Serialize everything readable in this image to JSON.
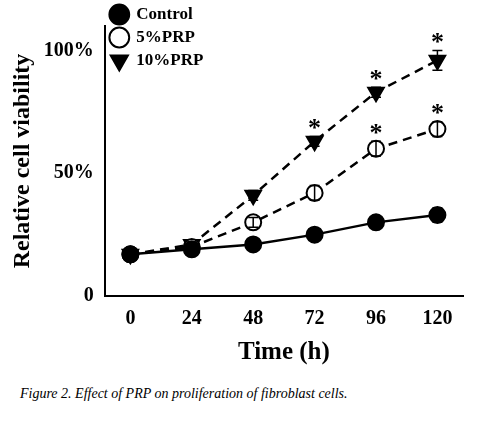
{
  "chart_data": {
    "type": "line",
    "caption": "Figure 2. Effect of PRP on proliferation of fibroblast cells.",
    "x_label": "Time (h)",
    "y_label": "Relative cell viability",
    "x": [
      0,
      24,
      48,
      72,
      96,
      120
    ],
    "series": [
      {
        "name": "Control",
        "color": "#000000",
        "marker": "circle",
        "line_style": "solid",
        "values": [
          17,
          19,
          21,
          25,
          30,
          33
        ],
        "errors": [
          1,
          1,
          1,
          1.5,
          2,
          3
        ]
      },
      {
        "name": "5%PRP",
        "color": "#000000",
        "marker": "open_circle",
        "line_style": "dashed",
        "values": [
          17,
          20,
          30,
          42,
          60,
          68
        ],
        "errors": [
          1,
          1,
          2,
          3,
          3,
          3
        ]
      },
      {
        "name": "10%PRP",
        "color": "#000000",
        "marker": "triangle_down",
        "line_style": "dashed",
        "values": [
          17,
          21,
          41,
          63,
          83,
          96
        ],
        "errors": [
          1,
          1,
          2,
          2,
          2,
          4
        ]
      }
    ],
    "xlim": [
      -10,
      130
    ],
    "xticks": [
      0,
      24,
      48,
      72,
      96,
      120
    ],
    "ylim": [
      0,
      110
    ],
    "yticks": [
      0,
      {
        "value": 50,
        "label": "50%"
      },
      {
        "value": 100,
        "label": "100%"
      }
    ],
    "grid": false,
    "legend": "upper left",
    "annotations": [
      {
        "text": "*",
        "x": 72,
        "series": "10%PRP"
      },
      {
        "text": "*",
        "x": 96,
        "series": "10%PRP"
      },
      {
        "text": "*",
        "x": 120,
        "series": "10%PRP"
      },
      {
        "text": "*",
        "x": 96,
        "series": "5%PRP"
      },
      {
        "text": "*",
        "x": 120,
        "series": "5%PRP"
      }
    ]
  }
}
